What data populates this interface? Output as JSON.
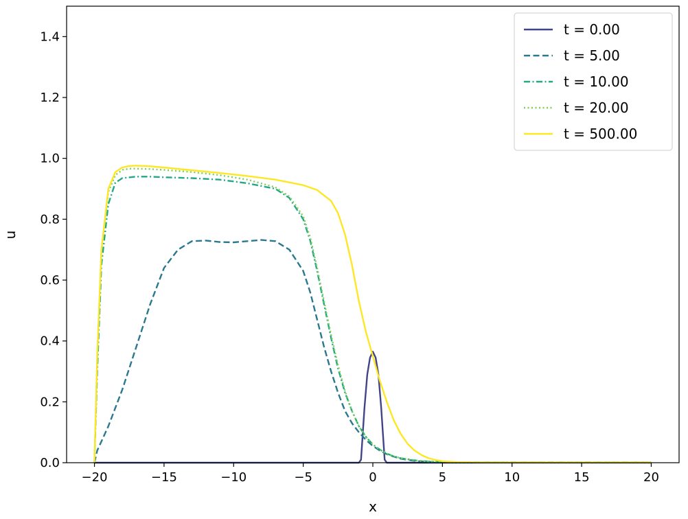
{
  "chart_data": {
    "type": "line",
    "xlabel": "x",
    "ylabel": "u",
    "xlim": [
      -22,
      22
    ],
    "ylim": [
      0,
      1.5
    ],
    "xticks": [
      -20,
      -15,
      -10,
      -5,
      0,
      5,
      10,
      15,
      20
    ],
    "xtick_labels": [
      "−20",
      "−15",
      "−10",
      "−5",
      "0",
      "5",
      "10",
      "15",
      "20"
    ],
    "yticks": [
      0,
      0.2,
      0.4,
      0.6,
      0.8,
      1.0,
      1.2,
      1.4
    ],
    "ytick_labels": [
      "0.0",
      "0.2",
      "0.4",
      "0.6",
      "0.8",
      "1.0",
      "1.2",
      "1.4"
    ],
    "grid": false,
    "legend_position": "top-right",
    "series": [
      {
        "name": "t = 0.00",
        "color": "#414487",
        "dash": "solid",
        "x": [
          -20,
          -1,
          -0.85,
          -0.6,
          -0.4,
          -0.2,
          0,
          0.2,
          0.4,
          0.6,
          0.85,
          1,
          20
        ],
        "y": [
          0,
          0,
          0.01,
          0.18,
          0.29,
          0.345,
          0.365,
          0.345,
          0.29,
          0.18,
          0.01,
          0,
          0
        ]
      },
      {
        "name": "t = 5.00",
        "color": "#2a788e",
        "dash": "dashed",
        "x": [
          -20,
          -19.8,
          -19,
          -18,
          -17,
          -16,
          -15,
          -14,
          -13,
          -12,
          -11,
          -10,
          -9,
          -8,
          -7,
          -6,
          -5,
          -4.5,
          -4,
          -3.5,
          -3,
          -2.5,
          -2,
          -1.5,
          -1,
          -0.5,
          0,
          0.5,
          1,
          1.5,
          2,
          3,
          4,
          5,
          6,
          8,
          10,
          15,
          20
        ],
        "y": [
          0,
          0.04,
          0.12,
          0.24,
          0.38,
          0.52,
          0.64,
          0.7,
          0.728,
          0.73,
          0.725,
          0.724,
          0.728,
          0.732,
          0.728,
          0.7,
          0.63,
          0.56,
          0.47,
          0.38,
          0.3,
          0.23,
          0.17,
          0.13,
          0.1,
          0.075,
          0.055,
          0.04,
          0.028,
          0.02,
          0.013,
          0.006,
          0.003,
          0.002,
          0.001,
          0.001,
          0.001,
          0.001,
          0.001
        ]
      },
      {
        "name": "t = 10.00",
        "color": "#22a884",
        "dash": "dashdot",
        "x": [
          -20,
          -19.8,
          -19.5,
          -19,
          -18.5,
          -18,
          -17,
          -16,
          -15,
          -13,
          -11,
          -9,
          -7,
          -6,
          -5,
          -4.5,
          -4,
          -3.5,
          -3,
          -2.5,
          -2,
          -1.5,
          -1,
          -0.5,
          0,
          0.5,
          1,
          1.5,
          2,
          3,
          4,
          5,
          6,
          8,
          10,
          15,
          20
        ],
        "y": [
          0,
          0.3,
          0.65,
          0.85,
          0.92,
          0.935,
          0.94,
          0.94,
          0.938,
          0.935,
          0.93,
          0.918,
          0.9,
          0.87,
          0.8,
          0.73,
          0.63,
          0.52,
          0.41,
          0.31,
          0.23,
          0.17,
          0.12,
          0.085,
          0.06,
          0.043,
          0.03,
          0.021,
          0.015,
          0.008,
          0.004,
          0.002,
          0.001,
          0.001,
          0.001,
          0.001,
          0.001
        ]
      },
      {
        "name": "t = 20.00",
        "color": "#7ad151",
        "dash": "dotted",
        "x": [
          -20,
          -19.8,
          -19.5,
          -19,
          -18.5,
          -18,
          -17.5,
          -17,
          -16,
          -15,
          -13,
          -11,
          -9,
          -7,
          -6,
          -5,
          -4.5,
          -4,
          -3.5,
          -3,
          -2.5,
          -2,
          -1.5,
          -1,
          -0.5,
          0,
          0.5,
          1,
          1.5,
          2,
          3,
          4,
          5,
          6,
          8,
          10,
          15,
          20
        ],
        "y": [
          0,
          0.35,
          0.7,
          0.89,
          0.945,
          0.962,
          0.966,
          0.966,
          0.965,
          0.962,
          0.955,
          0.945,
          0.93,
          0.905,
          0.875,
          0.81,
          0.74,
          0.64,
          0.53,
          0.42,
          0.32,
          0.235,
          0.17,
          0.12,
          0.085,
          0.06,
          0.043,
          0.03,
          0.021,
          0.015,
          0.008,
          0.004,
          0.002,
          0.001,
          0.001,
          0.001,
          0.001,
          0.001
        ]
      },
      {
        "name": "t = 500.00",
        "color": "#fde725",
        "dash": "solid",
        "x": [
          -20,
          -19.8,
          -19.5,
          -19,
          -18.5,
          -18,
          -17.5,
          -17,
          -16,
          -15,
          -13,
          -11,
          -9,
          -7,
          -5,
          -4,
          -3,
          -2.5,
          -2,
          -1.5,
          -1,
          -0.5,
          0,
          0.5,
          1,
          1.5,
          2,
          2.5,
          3,
          3.5,
          4,
          4.5,
          5,
          6,
          8,
          10,
          15,
          20
        ],
        "y": [
          0,
          0.35,
          0.7,
          0.9,
          0.955,
          0.97,
          0.975,
          0.976,
          0.974,
          0.97,
          0.961,
          0.952,
          0.942,
          0.93,
          0.912,
          0.896,
          0.86,
          0.82,
          0.75,
          0.65,
          0.53,
          0.43,
          0.35,
          0.27,
          0.2,
          0.14,
          0.095,
          0.062,
          0.04,
          0.025,
          0.015,
          0.009,
          0.005,
          0.002,
          0.001,
          0.001,
          0.001,
          0.001
        ]
      }
    ]
  }
}
